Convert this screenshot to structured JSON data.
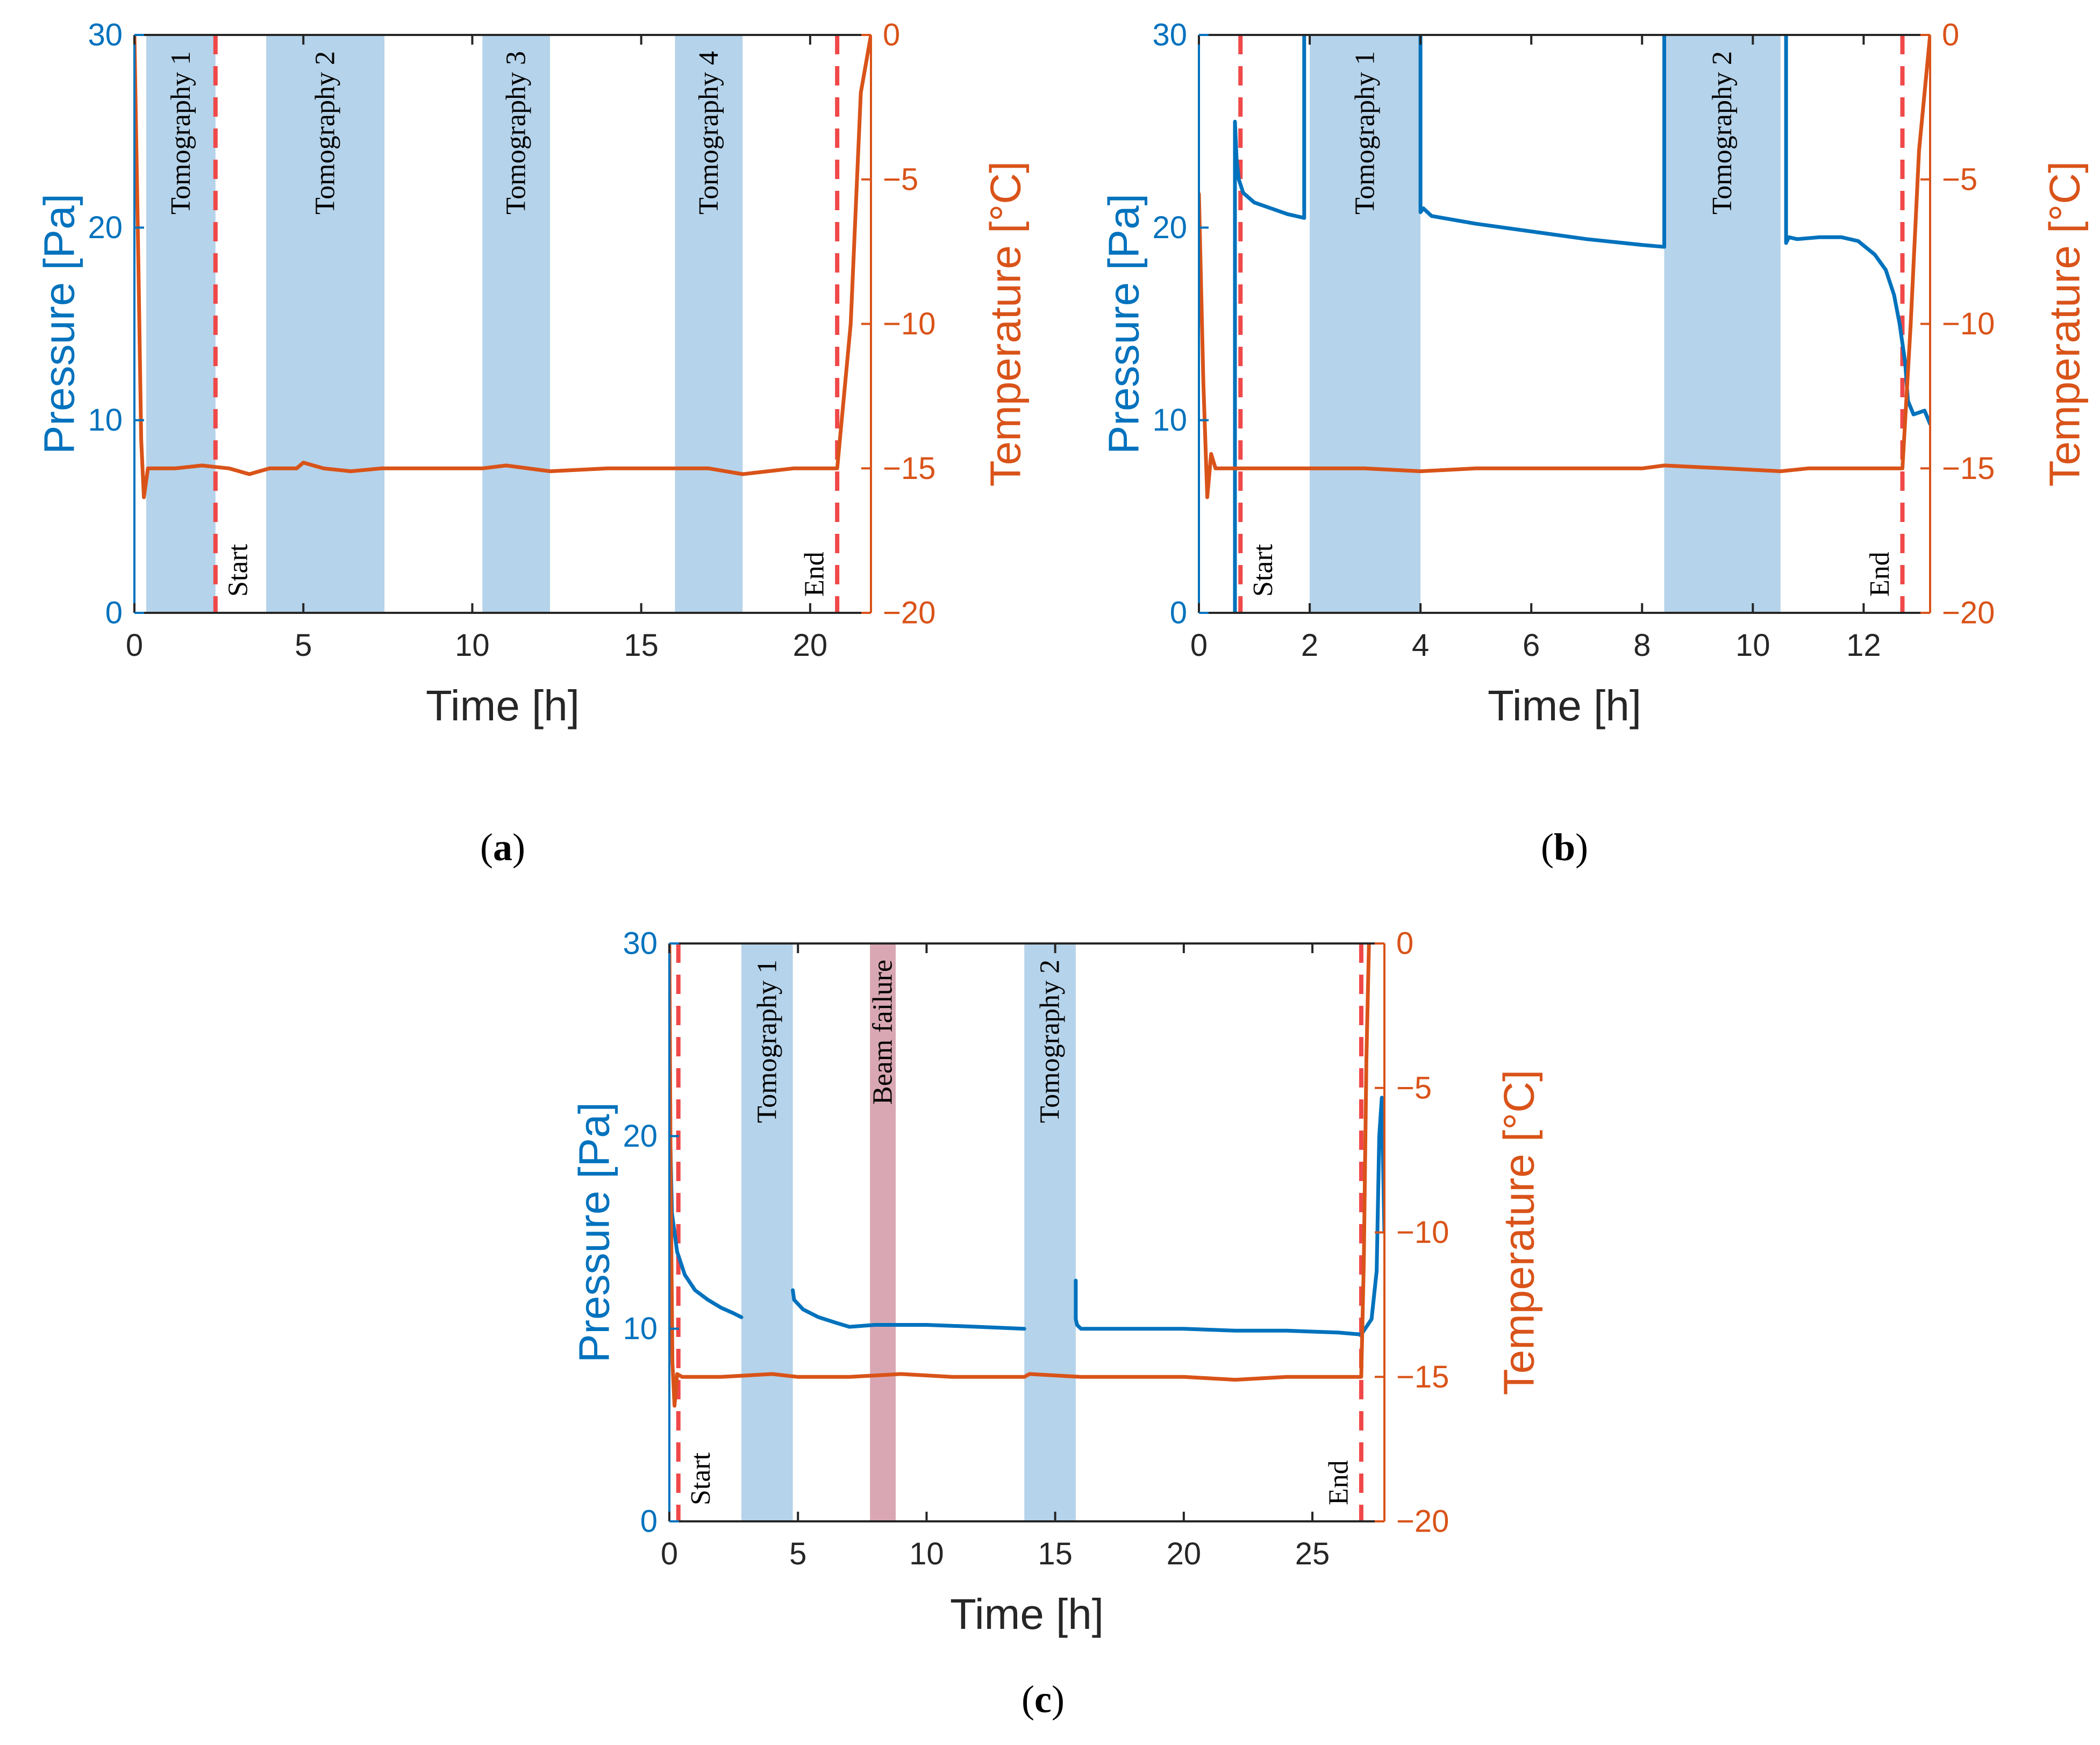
{
  "colors": {
    "pressure": "#0072BD",
    "temperature": "#D95319",
    "tomography_band": "#B5D3EA",
    "failure_band": "#D9A7B4",
    "marker": "#F04848",
    "frame": "#262626"
  },
  "chart_data": [
    {
      "type": "line",
      "caption": {
        "pre": "(",
        "letter": "a",
        "post": ")"
      },
      "xlabel": "Time [h]",
      "ylabel_left": "Pressure [Pa]",
      "ylabel_right": "Temperature [°C]",
      "xlim": [
        0,
        21.8
      ],
      "ylim_left": [
        0,
        30
      ],
      "ylim_right": [
        -20,
        0
      ],
      "xticks": [
        0,
        5,
        10,
        15,
        20
      ],
      "yticks_left": [
        0,
        10,
        20,
        30
      ],
      "yticks_right": [
        -20,
        -15,
        -10,
        -5,
        0
      ],
      "bands": [
        {
          "label": "Tomography 1",
          "x0": 0.35,
          "x1": 2.4,
          "kind": "tomography"
        },
        {
          "label": "Tomography 2",
          "x0": 3.9,
          "x1": 7.4,
          "kind": "tomography"
        },
        {
          "label": "Tomography 3",
          "x0": 10.3,
          "x1": 12.3,
          "kind": "tomography"
        },
        {
          "label": "Tomography 4",
          "x0": 16.0,
          "x1": 18.0,
          "kind": "tomography"
        }
      ],
      "markers": [
        {
          "label": "Start",
          "x": 2.4
        },
        {
          "label": "End",
          "x": 20.8
        }
      ],
      "series": [
        {
          "name": "Temperature",
          "axis": "right",
          "x": [
            0.0,
            0.12,
            0.2,
            0.28,
            0.4,
            1.2,
            2.0,
            2.8,
            3.4,
            4.0,
            4.8,
            5.0,
            5.6,
            6.4,
            7.3,
            8.5,
            10.3,
            11.0,
            12.3,
            14.0,
            16.0,
            17.0,
            18.0,
            19.5,
            20.8,
            21.2,
            21.5,
            21.8
          ],
          "y": [
            0.0,
            -8.0,
            -14.0,
            -16.0,
            -15.0,
            -15.0,
            -14.9,
            -15.0,
            -15.2,
            -15.0,
            -15.0,
            -14.8,
            -15.0,
            -15.1,
            -15.0,
            -15.0,
            -15.0,
            -14.9,
            -15.1,
            -15.0,
            -15.0,
            -15.0,
            -15.2,
            -15.0,
            -15.0,
            -10.0,
            -2.0,
            0.0
          ]
        }
      ]
    },
    {
      "type": "line",
      "caption": {
        "pre": "(",
        "letter": "b",
        "post": ")"
      },
      "xlabel": "Time [h]",
      "ylabel_left": "Pressure [Pa]",
      "ylabel_right": "Temperature [°C]",
      "xlim": [
        0,
        13.2
      ],
      "ylim_left": [
        0,
        30
      ],
      "ylim_right": [
        -20,
        0
      ],
      "xticks": [
        0,
        2,
        4,
        6,
        8,
        10,
        12
      ],
      "yticks_left": [
        0,
        10,
        20,
        30
      ],
      "yticks_right": [
        -20,
        -15,
        -10,
        -5,
        0
      ],
      "bands": [
        {
          "label": "Tomography 1",
          "x0": 2.0,
          "x1": 4.0,
          "kind": "tomography"
        },
        {
          "label": "Tomography 2",
          "x0": 8.4,
          "x1": 10.5,
          "kind": "tomography"
        }
      ],
      "markers": [
        {
          "label": "Start",
          "x": 0.75
        },
        {
          "label": "End",
          "x": 12.7
        }
      ],
      "series": [
        {
          "name": "Pressure",
          "axis": "left",
          "segments": [
            {
              "x": [
                0.65,
                0.65,
                0.68,
                0.72,
                0.8,
                1.0,
                1.3,
                1.6,
                1.9
              ],
              "y": [
                0,
                25.5,
                23.5,
                22.5,
                21.8,
                21.3,
                21.0,
                20.7,
                20.5
              ]
            },
            {
              "x": [
                1.9,
                1.9
              ],
              "y": [
                20.5,
                30
              ]
            },
            {
              "x": [
                4.0,
                4.0,
                4.05,
                4.2,
                5.0,
                6.0,
                7.0,
                8.0,
                8.4,
                8.4
              ],
              "y": [
                30,
                20.8,
                21.0,
                20.6,
                20.2,
                19.8,
                19.4,
                19.1,
                19.0,
                30
              ]
            },
            {
              "x": [
                10.6,
                10.6,
                10.65,
                10.8,
                11.2,
                11.6,
                11.9,
                12.2,
                12.4,
                12.55,
                12.65,
                12.75,
                12.8,
                12.9,
                13.1,
                13.2
              ],
              "y": [
                30,
                19.2,
                19.5,
                19.4,
                19.5,
                19.5,
                19.3,
                18.6,
                17.8,
                16.5,
                15.0,
                13.0,
                11.0,
                10.3,
                10.5,
                9.8
              ]
            }
          ]
        },
        {
          "name": "Temperature",
          "axis": "right",
          "x": [
            0.0,
            0.08,
            0.15,
            0.22,
            0.3,
            0.5,
            1.0,
            2.0,
            3.0,
            4.0,
            5.0,
            6.0,
            7.0,
            8.0,
            8.4,
            9.5,
            10.5,
            11.0,
            12.0,
            12.7,
            12.85,
            13.0,
            13.2
          ],
          "y": [
            -5.5,
            -12.0,
            -16.0,
            -14.5,
            -15.0,
            -15.0,
            -15.0,
            -15.0,
            -15.0,
            -15.1,
            -15.0,
            -15.0,
            -15.0,
            -15.0,
            -14.9,
            -15.0,
            -15.1,
            -15.0,
            -15.0,
            -15.0,
            -10.0,
            -4.0,
            0.0
          ]
        }
      ]
    },
    {
      "type": "line",
      "caption": {
        "pre": "(",
        "letter": "c",
        "post": ")"
      },
      "xlabel": "Time [h]",
      "ylabel_left": "Pressure [Pa]",
      "ylabel_right": "Temperature [°C]",
      "xlim": [
        0,
        27.8
      ],
      "ylim_left": [
        0,
        30
      ],
      "ylim_right": [
        -20,
        0
      ],
      "xticks": [
        0,
        5,
        10,
        15,
        20,
        25
      ],
      "yticks_left": [
        0,
        10,
        20,
        30
      ],
      "yticks_right": [
        -20,
        -15,
        -10,
        -5,
        0
      ],
      "bands": [
        {
          "label": "Tomography 1",
          "x0": 2.8,
          "x1": 4.8,
          "kind": "tomography"
        },
        {
          "label": "Beam failure",
          "x0": 7.8,
          "x1": 8.8,
          "kind": "failure"
        },
        {
          "label": "Tomography 2",
          "x0": 13.8,
          "x1": 15.8,
          "kind": "tomography"
        }
      ],
      "markers": [
        {
          "label": "Start",
          "x": 0.35
        },
        {
          "label": "End",
          "x": 26.9
        }
      ],
      "series": [
        {
          "name": "Pressure",
          "axis": "left",
          "segments": [
            {
              "x": [
                0.0,
                0.1,
                0.3,
                0.6,
                1.0,
                1.5,
                2.0,
                2.5,
                2.8
              ],
              "y": [
                22.0,
                16.0,
                14.0,
                12.8,
                12.0,
                11.5,
                11.1,
                10.8,
                10.6
              ]
            },
            {
              "x": [
                4.8,
                4.85,
                5.2,
                5.8,
                6.5,
                7.0,
                8.0,
                10.0,
                12.0,
                13.8
              ],
              "y": [
                12.0,
                11.5,
                11.0,
                10.6,
                10.3,
                10.1,
                10.2,
                10.2,
                10.1,
                10.0
              ]
            },
            {
              "x": [
                15.8,
                15.8,
                15.85,
                16.0,
                18.0,
                20.0,
                22.0,
                24.0,
                26.0,
                26.9,
                27.3,
                27.5,
                27.6,
                27.7,
                27.8
              ],
              "y": [
                12.5,
                10.5,
                10.2,
                10.0,
                10.0,
                10.0,
                9.9,
                9.9,
                9.8,
                9.7,
                10.5,
                13.0,
                20.0,
                22.0,
                15.0
              ]
            }
          ]
        },
        {
          "name": "Temperature",
          "axis": "right",
          "x": [
            0.0,
            0.05,
            0.12,
            0.2,
            0.3,
            0.5,
            2.0,
            4.0,
            5.0,
            7.0,
            9.0,
            11.0,
            13.8,
            14.0,
            16.0,
            18.0,
            20.0,
            22.0,
            24.0,
            26.0,
            26.9,
            27.0,
            27.1,
            27.2
          ],
          "y": [
            0.0,
            -8.0,
            -14.5,
            -16.0,
            -14.9,
            -15.0,
            -15.0,
            -14.9,
            -15.0,
            -15.0,
            -14.9,
            -15.0,
            -15.0,
            -14.9,
            -15.0,
            -15.0,
            -15.0,
            -15.1,
            -15.0,
            -15.0,
            -15.0,
            -11.0,
            -4.0,
            0.0
          ]
        }
      ]
    }
  ]
}
